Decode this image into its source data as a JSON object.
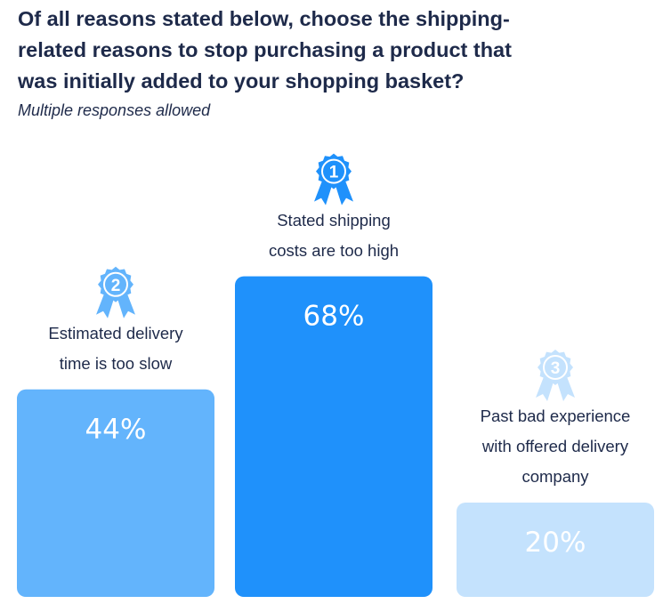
{
  "chart_data": {
    "type": "bar",
    "title": "Of all reasons stated below, choose the shipping-\nrelated reasons to stop purchasing a product that\nwas initially added to your shopping basket?",
    "subtitle": "Multiple responses allowed",
    "categories": [
      "Estimated delivery\ntime is too slow",
      "Stated shipping\ncosts are too high",
      "Past bad experience\nwith offered delivery\ncompany"
    ],
    "values": [
      44,
      68,
      20
    ],
    "value_labels": [
      "44%",
      "68%",
      "20%"
    ],
    "ranks": [
      "2",
      "1",
      "3"
    ],
    "ylim": [
      0,
      100
    ],
    "colors": [
      "#63b4fc",
      "#1f91fb",
      "#c4e2fd"
    ],
    "badge_colors": [
      "#63b4fc",
      "#1f91fb",
      "#c4e2fd"
    ],
    "xlabel": "",
    "ylabel": ""
  }
}
